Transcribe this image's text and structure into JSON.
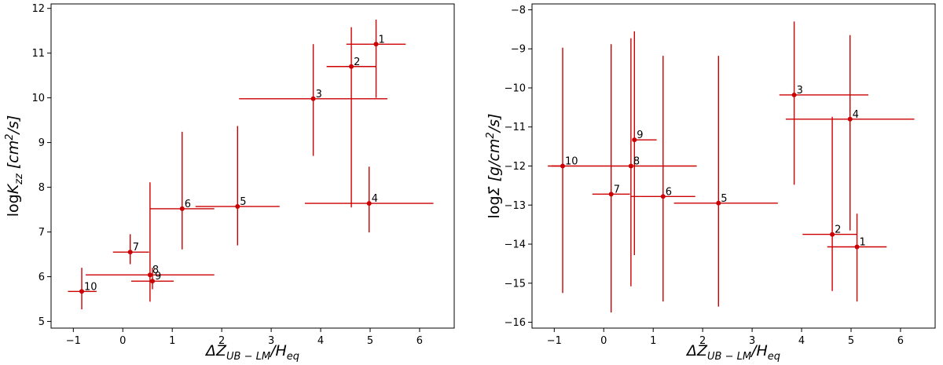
{
  "chart_data": [
    {
      "type": "scatter",
      "title": "",
      "xlabel": "ΔZ_{UB−LM}/H_{eq}",
      "ylabel": "log K_{zz} [cm²/s]",
      "xlabel_display": {
        "main": "ΔZ",
        "sub": "UB − LM",
        "rest": "/H",
        "sub2": "eq"
      },
      "ylabel_display": {
        "main": "log",
        "var": "K",
        "sub": "zz",
        "unit": " [cm",
        "sup": "2",
        "unit2": "/s]"
      },
      "xlim": [
        -1.45,
        6.7
      ],
      "ylim": [
        4.85,
        12.1
      ],
      "xticks": [
        -1,
        0,
        1,
        2,
        3,
        4,
        5,
        6
      ],
      "yticks": [
        5,
        6,
        7,
        8,
        9,
        10,
        11,
        12
      ],
      "color": "#cc0000",
      "points": [
        {
          "label": "1",
          "x": 5.12,
          "y": 11.2,
          "xerr": [
            0.6,
            0.6
          ],
          "yerr": [
            1.2,
            0.55
          ]
        },
        {
          "label": "2",
          "x": 4.62,
          "y": 10.7,
          "xerr": [
            0.5,
            0.5
          ],
          "yerr": [
            3.15,
            0.88
          ]
        },
        {
          "label": "3",
          "x": 3.85,
          "y": 9.98,
          "xerr": [
            1.5,
            1.5
          ],
          "yerr": [
            1.28,
            1.22
          ]
        },
        {
          "label": "4",
          "x": 4.98,
          "y": 7.64,
          "xerr": [
            1.3,
            1.3
          ],
          "yerr": [
            0.65,
            0.82
          ]
        },
        {
          "label": "5",
          "x": 2.32,
          "y": 7.57,
          "xerr": [
            0.85,
            0.85
          ],
          "yerr": [
            0.87,
            1.8
          ]
        },
        {
          "label": "6",
          "x": 1.2,
          "y": 7.52,
          "xerr": [
            0.65,
            0.65
          ],
          "yerr": [
            0.91,
            1.72
          ]
        },
        {
          "label": "7",
          "x": 0.15,
          "y": 6.55,
          "xerr": [
            0.35,
            0.38
          ],
          "yerr": [
            0.27,
            0.4
          ]
        },
        {
          "label": "8",
          "x": 0.55,
          "y": 6.04,
          "xerr": [
            1.3,
            1.3
          ],
          "yerr": [
            0.6,
            2.07
          ]
        },
        {
          "label": "9",
          "x": 0.6,
          "y": 5.9,
          "xerr": [
            0.43,
            0.43
          ],
          "yerr": [
            0.18,
            0.3
          ]
        },
        {
          "label": "10",
          "x": -0.83,
          "y": 5.67,
          "xerr": [
            0.28,
            0.3
          ],
          "yerr": [
            0.4,
            0.53
          ]
        }
      ]
    },
    {
      "type": "scatter",
      "title": "",
      "xlabel": "ΔZ_{UB−LM}/H_{eq}",
      "ylabel": "log Σ̇ [g/cm²/s]",
      "xlabel_display": {
        "main": "ΔZ",
        "sub": "UB − LM",
        "rest": "/H",
        "sub2": "eq"
      },
      "ylabel_display": {
        "main": "log",
        "var": "Σ̇",
        "sub": "",
        "unit": " [g/cm",
        "sup": "2",
        "unit2": "/s]"
      },
      "xlim": [
        -1.45,
        6.7
      ],
      "ylim": [
        -16.15,
        -7.85
      ],
      "xticks": [
        -1,
        0,
        1,
        2,
        3,
        4,
        5,
        6
      ],
      "yticks": [
        -16,
        -15,
        -14,
        -13,
        -12,
        -11,
        -10,
        -9,
        -8
      ],
      "color": "#cc0000",
      "points": [
        {
          "label": "3",
          "x": 3.85,
          "y": -10.18,
          "xerr": [
            0.3,
            1.5
          ],
          "yerr": [
            2.3,
            1.88
          ]
        },
        {
          "label": "4",
          "x": 4.98,
          "y": -10.8,
          "xerr": [
            1.3,
            1.3
          ],
          "yerr": [
            2.85,
            2.15
          ]
        },
        {
          "label": "9",
          "x": 0.62,
          "y": -11.33,
          "xerr": [
            0.0,
            0.45
          ],
          "yerr": [
            2.95,
            2.78
          ]
        },
        {
          "label": "10",
          "x": -0.83,
          "y": -12.0,
          "xerr": [
            0.3,
            0.0
          ],
          "yerr": [
            3.25,
            3.03
          ]
        },
        {
          "label": "8",
          "x": 0.55,
          "y": -12.0,
          "xerr": [
            1.6,
            1.33
          ],
          "yerr": [
            3.08,
            3.27
          ]
        },
        {
          "label": "7",
          "x": 0.15,
          "y": -12.72,
          "xerr": [
            0.38,
            0.38
          ],
          "yerr": [
            3.03,
            3.84
          ]
        },
        {
          "label": "6",
          "x": 1.2,
          "y": -12.78,
          "xerr": [
            0.65,
            0.65
          ],
          "yerr": [
            2.69,
            3.6
          ]
        },
        {
          "label": "5",
          "x": 2.32,
          "y": -12.95,
          "xerr": [
            0.9,
            1.2
          ],
          "yerr": [
            2.65,
            3.77
          ]
        },
        {
          "label": "2",
          "x": 4.62,
          "y": -13.75,
          "xerr": [
            0.6,
            0.5
          ],
          "yerr": [
            1.45,
            3.01
          ]
        },
        {
          "label": "1",
          "x": 5.12,
          "y": -14.07,
          "xerr": [
            0.6,
            0.6
          ],
          "yerr": [
            1.4,
            0.85
          ]
        }
      ]
    }
  ]
}
